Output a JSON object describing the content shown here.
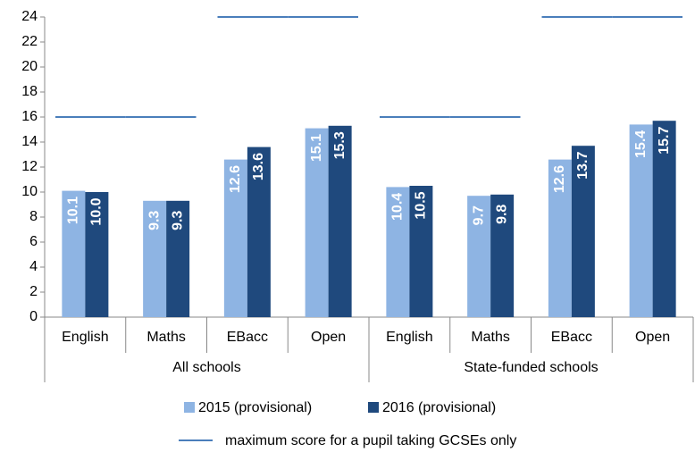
{
  "chart_data": {
    "type": "bar",
    "groups": [
      {
        "label": "All schools",
        "categories": [
          "English",
          "Maths",
          "EBacc",
          "Open"
        ]
      },
      {
        "label": "State-funded schools",
        "categories": [
          "English",
          "Maths",
          "EBacc",
          "Open"
        ]
      }
    ],
    "series": [
      {
        "name": "2015 (provisional)",
        "color": "#8eb4e3",
        "values": [
          10.1,
          9.3,
          12.6,
          15.1,
          10.4,
          9.7,
          12.6,
          15.4
        ],
        "value_labels": [
          "10.1",
          "9.3",
          "12.6",
          "15.1",
          "10.4",
          "9.7",
          "12.6",
          "15.4"
        ]
      },
      {
        "name": "2016 (provisional)",
        "color": "#1f497d",
        "values": [
          10,
          9.3,
          13.6,
          15.3,
          10.5,
          9.8,
          13.7,
          15.7
        ],
        "value_labels": [
          "10.0",
          "9.3",
          "13.6",
          "15.3",
          "10.5",
          "9.8",
          "13.7",
          "15.7"
        ]
      }
    ],
    "reference": {
      "name": "maximum score for a pupil taking GCSEs only",
      "color": "#4a7ebb",
      "values": [
        16,
        16,
        24,
        24,
        16,
        16,
        24,
        24
      ]
    },
    "ylim": [
      0,
      24
    ],
    "yticks": [
      0,
      2,
      4,
      6,
      8,
      10,
      12,
      14,
      16,
      18,
      20,
      22,
      24
    ],
    "grid": false
  }
}
